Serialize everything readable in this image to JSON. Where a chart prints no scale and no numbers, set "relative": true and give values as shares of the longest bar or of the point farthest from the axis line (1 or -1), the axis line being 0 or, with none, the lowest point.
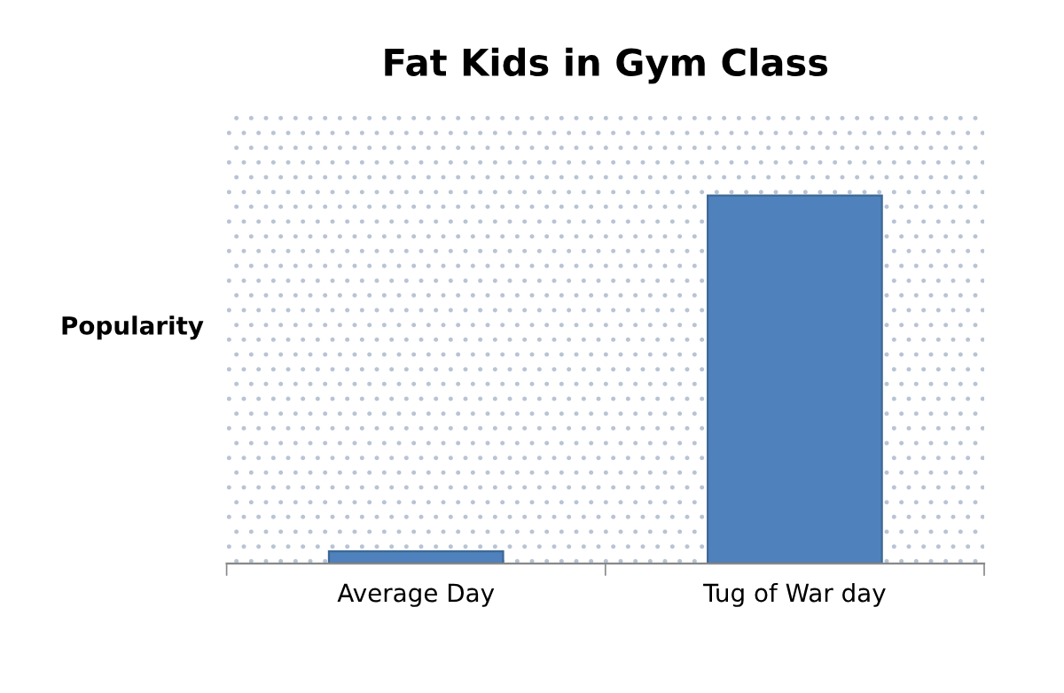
{
  "chart_data": {
    "type": "bar",
    "title": "Fat Kids in Gym Class",
    "ylabel": "Popularity",
    "relative": true,
    "categories": [
      "Average Day",
      "Tug of War day"
    ],
    "values": [
      0.033,
      1
    ],
    "color": "#4f81bd"
  }
}
